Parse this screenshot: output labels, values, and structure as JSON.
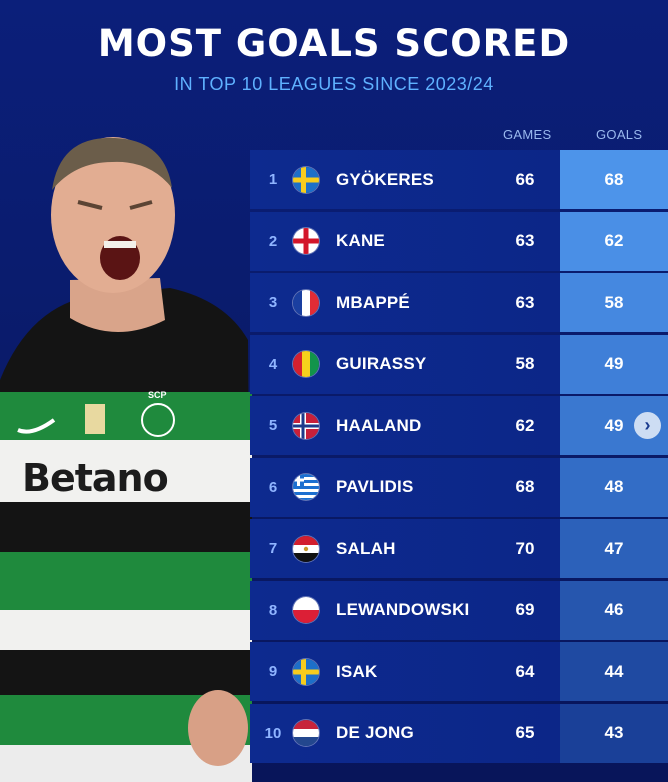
{
  "header": {
    "title": "MOST GOALS SCORED",
    "subtitle": "IN TOP 10 LEAGUES SINCE 2023/24"
  },
  "table": {
    "games_header": "GAMES",
    "goals_header": "GOALS",
    "rows": [
      {
        "rank": "1",
        "name": "GYÖKERES",
        "games": "66",
        "goals": "68",
        "flag_icon": "sweden-flag-icon"
      },
      {
        "rank": "2",
        "name": "KANE",
        "games": "63",
        "goals": "62",
        "flag_icon": "england-flag-icon"
      },
      {
        "rank": "3",
        "name": "MBAPPÉ",
        "games": "63",
        "goals": "58",
        "flag_icon": "france-flag-icon"
      },
      {
        "rank": "4",
        "name": "GUIRASSY",
        "games": "58",
        "goals": "49",
        "flag_icon": "guinea-flag-icon"
      },
      {
        "rank": "5",
        "name": "HAALAND",
        "games": "62",
        "goals": "49",
        "flag_icon": "norway-flag-icon"
      },
      {
        "rank": "6",
        "name": "PAVLIDIS",
        "games": "68",
        "goals": "48",
        "flag_icon": "greece-flag-icon"
      },
      {
        "rank": "7",
        "name": "SALAH",
        "games": "70",
        "goals": "47",
        "flag_icon": "egypt-flag-icon"
      },
      {
        "rank": "8",
        "name": "LEWANDOWSKI",
        "games": "69",
        "goals": "46",
        "flag_icon": "poland-flag-icon"
      },
      {
        "rank": "9",
        "name": "ISAK",
        "games": "64",
        "goals": "44",
        "flag_icon": "sweden-flag-icon"
      },
      {
        "rank": "10",
        "name": "DE JONG",
        "games": "65",
        "goals": "43",
        "flag_icon": "netherlands-flag-icon"
      }
    ]
  },
  "player_image": {
    "shirt_sponsor": "Betano",
    "club_crest_text": "SCP"
  },
  "colors": {
    "background": "#0a1b6b",
    "row": "#0d2a8f",
    "goals_top": "#4a90e8",
    "goals_bottom": "#17389c",
    "subtitle": "#5fb1ff"
  }
}
